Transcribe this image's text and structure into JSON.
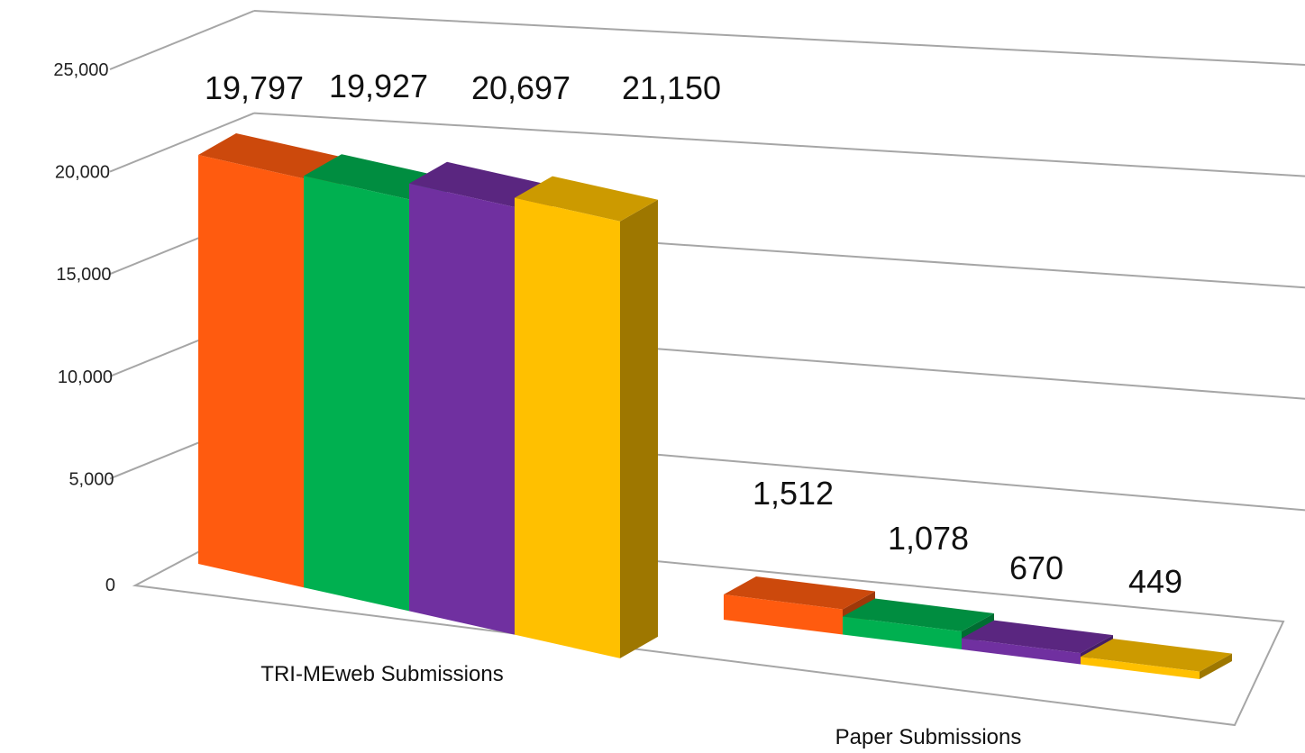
{
  "chart_data": {
    "type": "bar",
    "style": "3d-clustered-column",
    "categories": [
      "TRI-MEweb Submissions",
      "Paper Submissions"
    ],
    "series": [
      {
        "values": [
          19797,
          1512
        ],
        "color": "#ff5b0f"
      },
      {
        "values": [
          19927,
          1078
        ],
        "color": "#00b050"
      },
      {
        "values": [
          20697,
          670
        ],
        "color": "#7030a0"
      },
      {
        "values": [
          21150,
          449
        ],
        "color": "#ffc000"
      }
    ],
    "data_labels": [
      [
        "19,797",
        "1,512"
      ],
      [
        "19,927",
        "1,078"
      ],
      [
        "20,697",
        "670"
      ],
      [
        "21,150",
        "449"
      ]
    ],
    "y_ticks": [
      "0",
      "5,000",
      "10,000",
      "15,000",
      "20,000",
      "25,000"
    ],
    "ylim": [
      0,
      25000
    ],
    "grid": true,
    "legend": "none"
  }
}
